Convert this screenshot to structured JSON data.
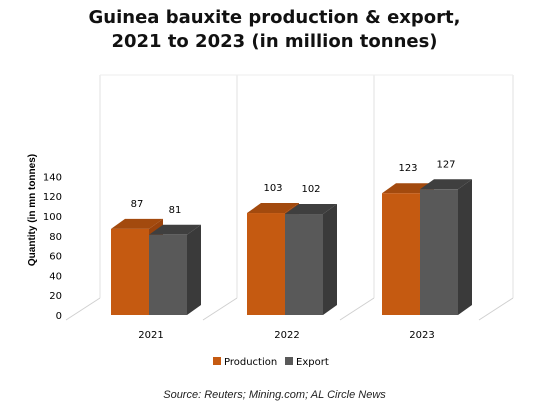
{
  "title_lines": [
    "Guinea bauxite production & export,",
    "2021 to 2023 (in million tonnes)"
  ],
  "source": "Source: Reuters; Mining.com; AL Circle News",
  "colors": {
    "production_front": "#c55a11",
    "production_top": "#a34a0e",
    "production_side": "#9a430c",
    "export_front": "#595959",
    "export_top": "#3f3f3f",
    "export_side": "#3a3a3a"
  },
  "chart_data": {
    "type": "bar",
    "title": "Guinea bauxite production & export, 2021 to 2023 (in million tonnes)",
    "categories": [
      "2021",
      "2022",
      "2023"
    ],
    "series": [
      {
        "name": "Production",
        "values": [
          87,
          103,
          123
        ]
      },
      {
        "name": "Export",
        "values": [
          81,
          102,
          127
        ]
      }
    ],
    "ylabel": "Quantity (in mn tonnes)",
    "xlabel": "",
    "ylim": [
      0,
      140
    ],
    "yticks": [
      0,
      20,
      40,
      60,
      80,
      100,
      120,
      140
    ],
    "grid": false,
    "legend": "bottom",
    "three_d": true
  }
}
